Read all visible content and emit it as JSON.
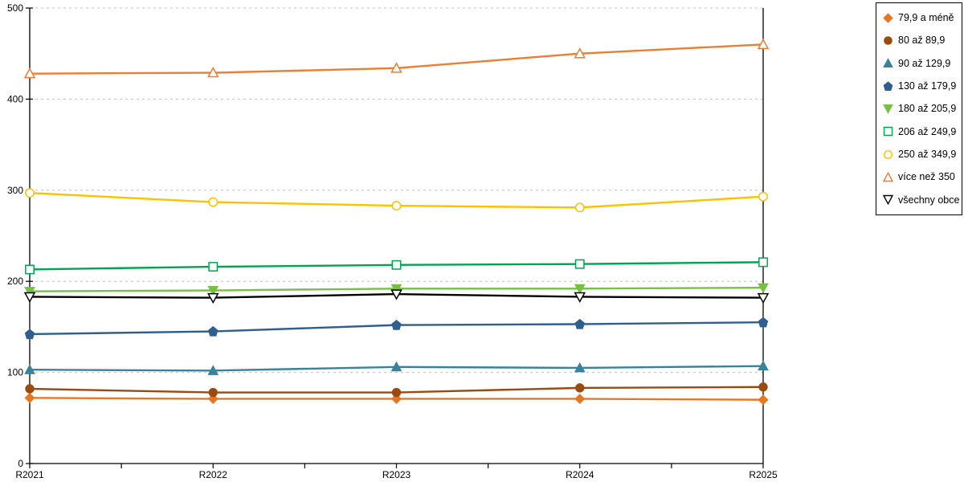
{
  "chart_data": {
    "type": "line",
    "title": "",
    "xlabel": "",
    "ylabel": "",
    "categories": [
      "R2021",
      "R2022",
      "R2023",
      "R2024",
      "R2025"
    ],
    "ylim": [
      0,
      500
    ],
    "yticks": [
      0,
      100,
      200,
      300,
      400,
      500
    ],
    "grid": "horizontal dashed gridlines at each 100 units",
    "legend_position": "right",
    "axis_color": "#000000",
    "gridline_color": "#BFBFBF",
    "background_color": "#FFFFFF",
    "series": [
      {
        "name": "79,9 a méně",
        "color": "#E87722",
        "marker": "diamond",
        "marker_fill": "solid",
        "values": [
          72,
          71,
          71,
          71,
          70
        ]
      },
      {
        "name": "80 až 89,9",
        "color": "#9C4A10",
        "marker": "circle",
        "marker_fill": "solid",
        "values": [
          82,
          78,
          78,
          83,
          84
        ]
      },
      {
        "name": "90 až 129,9",
        "color": "#38839B",
        "marker": "triangle-up",
        "marker_fill": "solid",
        "values": [
          103,
          102,
          106,
          105,
          107
        ]
      },
      {
        "name": "130 až 179,9",
        "color": "#2E5F8F",
        "marker": "pentagon",
        "marker_fill": "solid",
        "values": [
          142,
          145,
          152,
          153,
          155
        ]
      },
      {
        "name": "180 až 205,9",
        "color": "#76C043",
        "marker": "triangle-down",
        "marker_fill": "solid",
        "values": [
          189,
          190,
          192,
          192,
          193
        ]
      },
      {
        "name": "206 až 249,9",
        "color": "#00A550",
        "marker": "square",
        "marker_fill": "hollow",
        "values": [
          213,
          216,
          218,
          219,
          221
        ]
      },
      {
        "name": "250 až 349,9",
        "color": "#FFC000",
        "marker": "circle",
        "marker_fill": "hollow",
        "values": [
          297,
          287,
          283,
          281,
          293
        ]
      },
      {
        "name": "více než 350",
        "color": "#ED7D31",
        "marker": "triangle-up",
        "marker_fill": "hollow",
        "values": [
          428,
          429,
          434,
          450,
          460
        ]
      },
      {
        "name": "všechny obce",
        "color": "#000000",
        "marker": "triangle-down",
        "marker_fill": "hollow",
        "values": [
          183,
          182,
          186,
          183,
          182
        ]
      }
    ]
  }
}
